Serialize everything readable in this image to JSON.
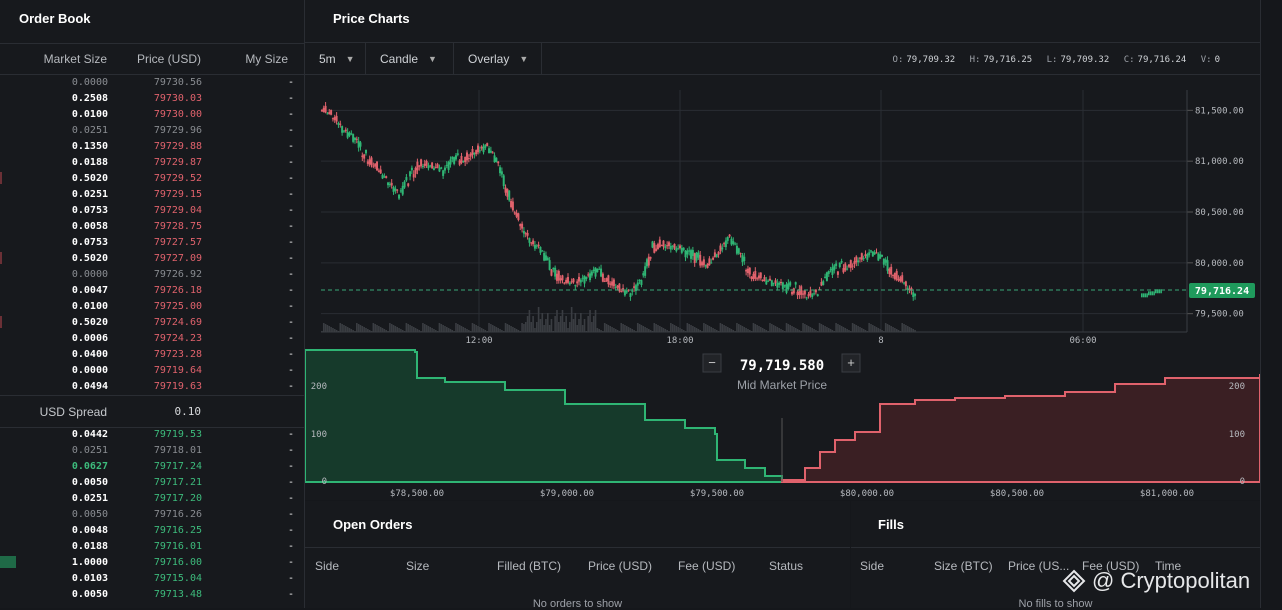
{
  "order_book": {
    "title": "Order Book",
    "columns": {
      "market_size": "Market Size",
      "price": "Price (USD)",
      "my_size": "My Size"
    },
    "asks": [
      {
        "size": "0.0000",
        "price": "79730.56",
        "dim": true,
        "my": "-"
      },
      {
        "size": "0.2508",
        "price": "79730.03",
        "my": "-"
      },
      {
        "size": "0.0100",
        "price": "79730.00",
        "my": "-"
      },
      {
        "size": "0.0251",
        "price": "79729.96",
        "dim": true,
        "my": "-"
      },
      {
        "size": "0.1350",
        "price": "79729.88",
        "my": "-"
      },
      {
        "size": "0.0188",
        "price": "79729.87",
        "my": "-"
      },
      {
        "size": "0.5020",
        "price": "79729.52",
        "my": "-"
      },
      {
        "size": "0.0251",
        "price": "79729.15",
        "my": "-"
      },
      {
        "size": "0.0753",
        "price": "79729.04",
        "my": "-"
      },
      {
        "size": "0.0058",
        "price": "79728.75",
        "my": "-"
      },
      {
        "size": "0.0753",
        "price": "79727.57",
        "my": "-"
      },
      {
        "size": "0.5020",
        "price": "79727.09",
        "my": "-"
      },
      {
        "size": "0.0000",
        "price": "79726.92",
        "dim": true,
        "my": "-"
      },
      {
        "size": "0.0047",
        "price": "79726.18",
        "my": "-"
      },
      {
        "size": "0.0100",
        "price": "79725.00",
        "my": "-"
      },
      {
        "size": "0.5020",
        "price": "79724.69",
        "my": "-"
      },
      {
        "size": "0.0006",
        "price": "79724.23",
        "my": "-"
      },
      {
        "size": "0.0400",
        "price": "79723.28",
        "my": "-"
      },
      {
        "size": "0.0000",
        "price": "79719.64",
        "my": "-"
      },
      {
        "size": "0.0494",
        "price": "79719.63",
        "my": "-"
      }
    ],
    "spread_label": "USD Spread",
    "spread_value": "0.10",
    "bids": [
      {
        "size": "0.0442",
        "price": "79719.53",
        "my": "-"
      },
      {
        "size": "0.0251",
        "price": "79718.01",
        "dim": true,
        "my": "-"
      },
      {
        "size": "0.0627",
        "price": "79717.24",
        "green": true,
        "my": "-"
      },
      {
        "size": "0.0050",
        "price": "79717.21",
        "my": "-"
      },
      {
        "size": "0.0251",
        "price": "79717.20",
        "my": "-"
      },
      {
        "size": "0.0050",
        "price": "79716.26",
        "dim": true,
        "my": "-"
      },
      {
        "size": "0.0048",
        "price": "79716.25",
        "my": "-"
      },
      {
        "size": "0.0188",
        "price": "79716.01",
        "my": "-"
      },
      {
        "size": "1.0000",
        "price": "79716.00",
        "my": "-"
      },
      {
        "size": "0.0103",
        "price": "79715.04",
        "my": "-"
      },
      {
        "size": "0.0050",
        "price": "79713.48",
        "my": "-"
      }
    ]
  },
  "price_charts": {
    "title": "Price Charts",
    "interval": "5m",
    "chart_type": "Candle",
    "overlay": "Overlay",
    "ohlc": {
      "o_label": "O:",
      "o": "79,709.32",
      "h_label": "H:",
      "h": "79,716.25",
      "l_label": "L:",
      "l": "79,709.32",
      "c_label": "C:",
      "c": "79,716.24",
      "v_label": "V:",
      "v": "0"
    },
    "y_ticks": [
      "81,500.00",
      "81,000.00",
      "80,500.00",
      "80,000.00",
      "79,500.00"
    ],
    "x_ticks": [
      "12:00",
      "18:00",
      "8",
      "06:00"
    ],
    "last_price": "79,716.24",
    "colors": {
      "up": "#2fb574",
      "down": "#e0626c",
      "last_badge": "#1f9a5c"
    }
  },
  "depth": {
    "mid_price": "79,719.580",
    "mid_label": "Mid Market Price",
    "minus": "−",
    "plus": "+",
    "y_ticks": [
      "200",
      "100",
      "0"
    ],
    "x_ticks": [
      "$78,500.00",
      "$79,000.00",
      "$79,500.00",
      "$80,000.00",
      "$80,500.00",
      "$81,000.00"
    ]
  },
  "chart_data": {
    "type": "line",
    "title": "",
    "xlabel": "",
    "ylabel": "",
    "ylim": [
      79300,
      81700
    ],
    "series": [
      {
        "values": [
          81550,
          81450,
          81300,
          81200,
          81050,
          80950,
          80800,
          80650,
          80850,
          81000,
          80950,
          80900,
          81000,
          81050,
          81100,
          81150,
          80950,
          80650,
          80400,
          80200,
          80100,
          79900,
          79850,
          79800,
          79850,
          79900,
          79850,
          79750,
          79700,
          79800,
          80150,
          80200,
          80150,
          80100,
          80050,
          80000,
          80100,
          80250,
          80050,
          79900,
          79850,
          79800,
          79750,
          79750,
          79700,
          79700,
          79900,
          79950,
          80000,
          80050,
          80100,
          80000,
          79900,
          79800,
          79650
        ]
      },
      {
        "values": [
          79680,
          79700,
          79720
        ]
      }
    ]
  },
  "open_orders": {
    "title": "Open Orders",
    "columns": [
      "Side",
      "Size",
      "Filled (BTC)",
      "Price (USD)",
      "Fee (USD)",
      "Status"
    ],
    "empty": "No orders to show"
  },
  "fills": {
    "title": "Fills",
    "columns": [
      "Side",
      "Size (BTC)",
      "Price (US...",
      "Fee (USD)",
      "Time"
    ],
    "empty": "No fills to show"
  },
  "watermark": "@ Cryptopolitan"
}
